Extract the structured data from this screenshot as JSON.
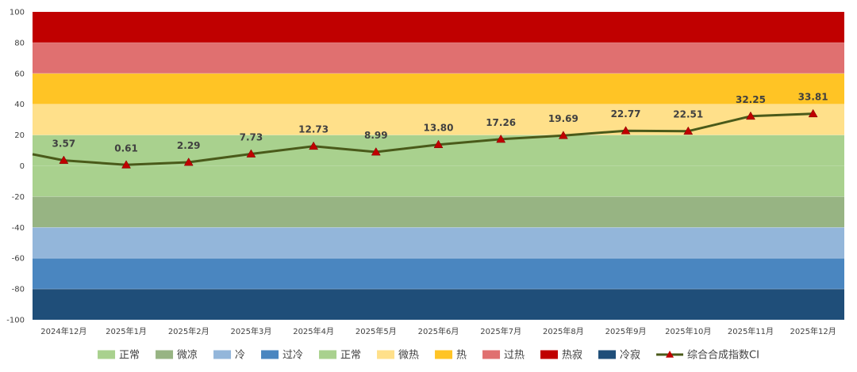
{
  "chart_data": {
    "type": "line",
    "title": "",
    "xlabel": "",
    "ylabel": "",
    "ylim": [
      -100,
      100
    ],
    "yticks": [
      100,
      80,
      60,
      40,
      20,
      0,
      -20,
      -40,
      -60,
      -80,
      -100
    ],
    "categories": [
      "2024年12月",
      "2025年1月",
      "2025年2月",
      "2025年3月",
      "2025年4月",
      "2025年5月",
      "2025年6月",
      "2025年7月",
      "2025年8月",
      "2025年9月",
      "2025年10月",
      "2025年11月",
      "2025年12月"
    ],
    "series": [
      {
        "name": "综合合成指数CI",
        "color": "#4a5a1a",
        "marker_color": "#c00000",
        "values": [
          3.57,
          0.61,
          2.29,
          7.73,
          12.73,
          8.99,
          13.8,
          17.26,
          19.69,
          22.77,
          22.51,
          32.25,
          33.81
        ],
        "labels": [
          "3.57",
          "0.61",
          "2.29",
          "7.73",
          "12.73",
          "8.99",
          "13.80",
          "17.26",
          "19.69",
          "22.77",
          "22.51",
          "32.25",
          "33.81"
        ],
        "start_value": 7.5
      }
    ],
    "bands": [
      {
        "name": "冷寂",
        "from": -100,
        "to": -80,
        "color": "#1f4e79"
      },
      {
        "name": "过冷",
        "from": -80,
        "to": -60,
        "color": "#4a86c0"
      },
      {
        "name": "冷",
        "from": -60,
        "to": -40,
        "color": "#93b6da"
      },
      {
        "name": "微凉",
        "from": -40,
        "to": -20,
        "color": "#97b483"
      },
      {
        "name": "正常",
        "from": -20,
        "to": 20,
        "color": "#a9d18e"
      },
      {
        "name": "微热",
        "from": 20,
        "to": 40,
        "color": "#ffe08a"
      },
      {
        "name": "热",
        "from": 40,
        "to": 60,
        "color": "#ffc425"
      },
      {
        "name": "过热",
        "from": 60,
        "to": 80,
        "color": "#e07070"
      },
      {
        "name": "热寂",
        "from": 80,
        "to": 100,
        "color": "#c00000"
      }
    ],
    "legend": {
      "position": "bottom",
      "items": [
        {
          "label": "正常",
          "color": "#a9d18e"
        },
        {
          "label": "微凉",
          "color": "#97b483"
        },
        {
          "label": "冷",
          "color": "#93b6da"
        },
        {
          "label": "过冷",
          "color": "#4a86c0"
        },
        {
          "label": "正常",
          "color": "#a9d18e"
        },
        {
          "label": "微热",
          "color": "#ffe08a"
        },
        {
          "label": "热",
          "color": "#ffc425"
        },
        {
          "label": "过热",
          "color": "#e07070"
        },
        {
          "label": "热寂",
          "color": "#c00000"
        },
        {
          "label": "冷寂",
          "color": "#1f4e79"
        },
        {
          "label": "综合合成指数CI",
          "color": "#4a5a1a",
          "marker": "triangle"
        }
      ]
    }
  }
}
